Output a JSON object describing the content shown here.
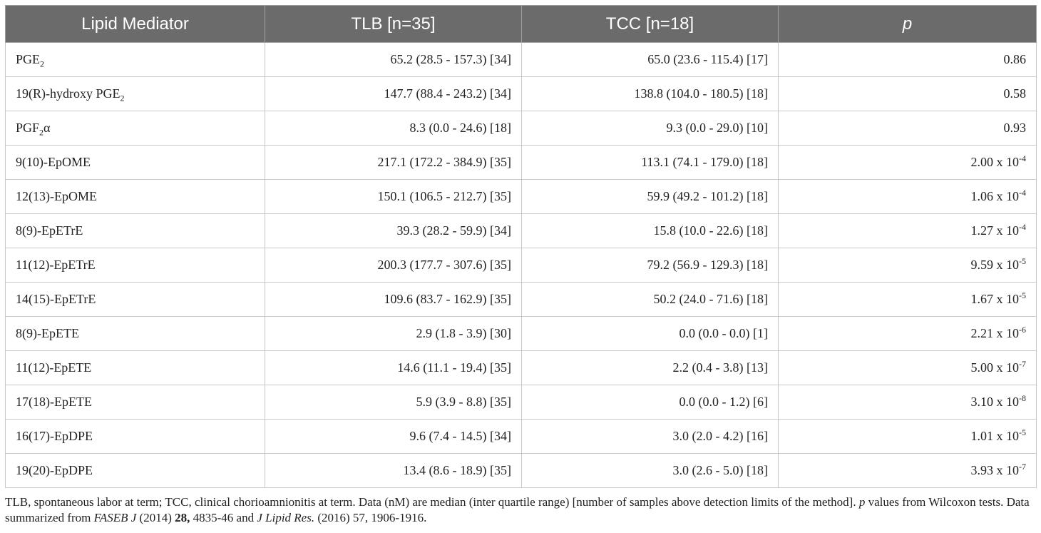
{
  "table": {
    "headers": [
      "Lipid Mediator",
      "TLB [n=35]",
      "TCC [n=18]",
      "p"
    ],
    "rows": [
      {
        "name": "PGE",
        "sub": "2",
        "suffix": "",
        "tlb": "65.2 (28.5 - 157.3) [34]",
        "tcc": "65.0 (23.6 - 115.4) [17]",
        "p": "0.86",
        "p_exp": ""
      },
      {
        "name": "19(R)-hydroxy PGE",
        "sub": "2",
        "suffix": "",
        "tlb": "147.7 (88.4 - 243.2) [34]",
        "tcc": "138.8 (104.0 - 180.5) [18]",
        "p": "0.58",
        "p_exp": ""
      },
      {
        "name": "PGF",
        "sub": "2",
        "suffix": "α",
        "tlb": "8.3 (0.0 - 24.6) [18]",
        "tcc": "9.3 (0.0 - 29.0) [10]",
        "p": "0.93",
        "p_exp": ""
      },
      {
        "name": "9(10)-EpOME",
        "sub": "",
        "suffix": "",
        "tlb": "217.1 (172.2 - 384.9) [35]",
        "tcc": "113.1 (74.1 - 179.0) [18]",
        "p": "2.00 x 10",
        "p_exp": "-4"
      },
      {
        "name": "12(13)-EpOME",
        "sub": "",
        "suffix": "",
        "tlb": "150.1 (106.5 - 212.7) [35]",
        "tcc": "59.9 (49.2 - 101.2) [18]",
        "p": "1.06 x 10",
        "p_exp": "-4"
      },
      {
        "name": "8(9)-EpETrE",
        "sub": "",
        "suffix": "",
        "tlb": "39.3 (28.2 - 59.9) [34]",
        "tcc": "15.8 (10.0 - 22.6) [18]",
        "p": "1.27 x 10",
        "p_exp": "-4"
      },
      {
        "name": "11(12)-EpETrE",
        "sub": "",
        "suffix": "",
        "tlb": "200.3 (177.7 - 307.6) [35]",
        "tcc": "79.2 (56.9 - 129.3) [18]",
        "p": "9.59 x 10",
        "p_exp": "-5"
      },
      {
        "name": "14(15)-EpETrE",
        "sub": "",
        "suffix": "",
        "tlb": "109.6 (83.7 - 162.9) [35]",
        "tcc": "50.2 (24.0 - 71.6) [18]",
        "p": "1.67 x 10",
        "p_exp": "-5"
      },
      {
        "name": "8(9)-EpETE",
        "sub": "",
        "suffix": "",
        "tlb": "2.9 (1.8 - 3.9) [30]",
        "tcc": "0.0 (0.0 - 0.0) [1]",
        "p": "2.21 x 10",
        "p_exp": "-6"
      },
      {
        "name": "11(12)-EpETE",
        "sub": "",
        "suffix": "",
        "tlb": "14.6 (11.1 - 19.4) [35]",
        "tcc": "2.2 (0.4 - 3.8) [13]",
        "p": "5.00 x 10",
        "p_exp": "-7"
      },
      {
        "name": "17(18)-EpETE",
        "sub": "",
        "suffix": "",
        "tlb": "5.9 (3.9 - 8.8) [35]",
        "tcc": "0.0 (0.0 - 1.2) [6]",
        "p": "3.10 x 10",
        "p_exp": "-8"
      },
      {
        "name": "16(17)-EpDPE",
        "sub": "",
        "suffix": "",
        "tlb": "9.6 (7.4 - 14.5) [34]",
        "tcc": "3.0 (2.0 - 4.2) [16]",
        "p": "1.01 x 10",
        "p_exp": "-5"
      },
      {
        "name": "19(20)-EpDPE",
        "sub": "",
        "suffix": "",
        "tlb": "13.4 (8.6 - 18.9) [35]",
        "tcc": "3.0 (2.6 - 5.0) [18]",
        "p": "3.93 x 10",
        "p_exp": "-7"
      }
    ]
  },
  "footnote": {
    "t1": "TLB, spontaneous labor at term; TCC, clinical chorioamnionitis at term. Data (nM) are median (inter quartile range) [number of samples above detection limits of the method]. ",
    "p": "p",
    "t2": " values from Wilcoxon tests. Data summarized from ",
    "j1": "FASEB J",
    "t3": " (2014) ",
    "vol": "28,",
    "t4": " 4835-46 and ",
    "j2": "J Lipid Res.",
    "t5": " (2016) 57, 1906-1916."
  },
  "colors": {
    "header_bg": "#6b6b6b",
    "header_text": "#ffffff",
    "grid": "#c8c8c8"
  }
}
